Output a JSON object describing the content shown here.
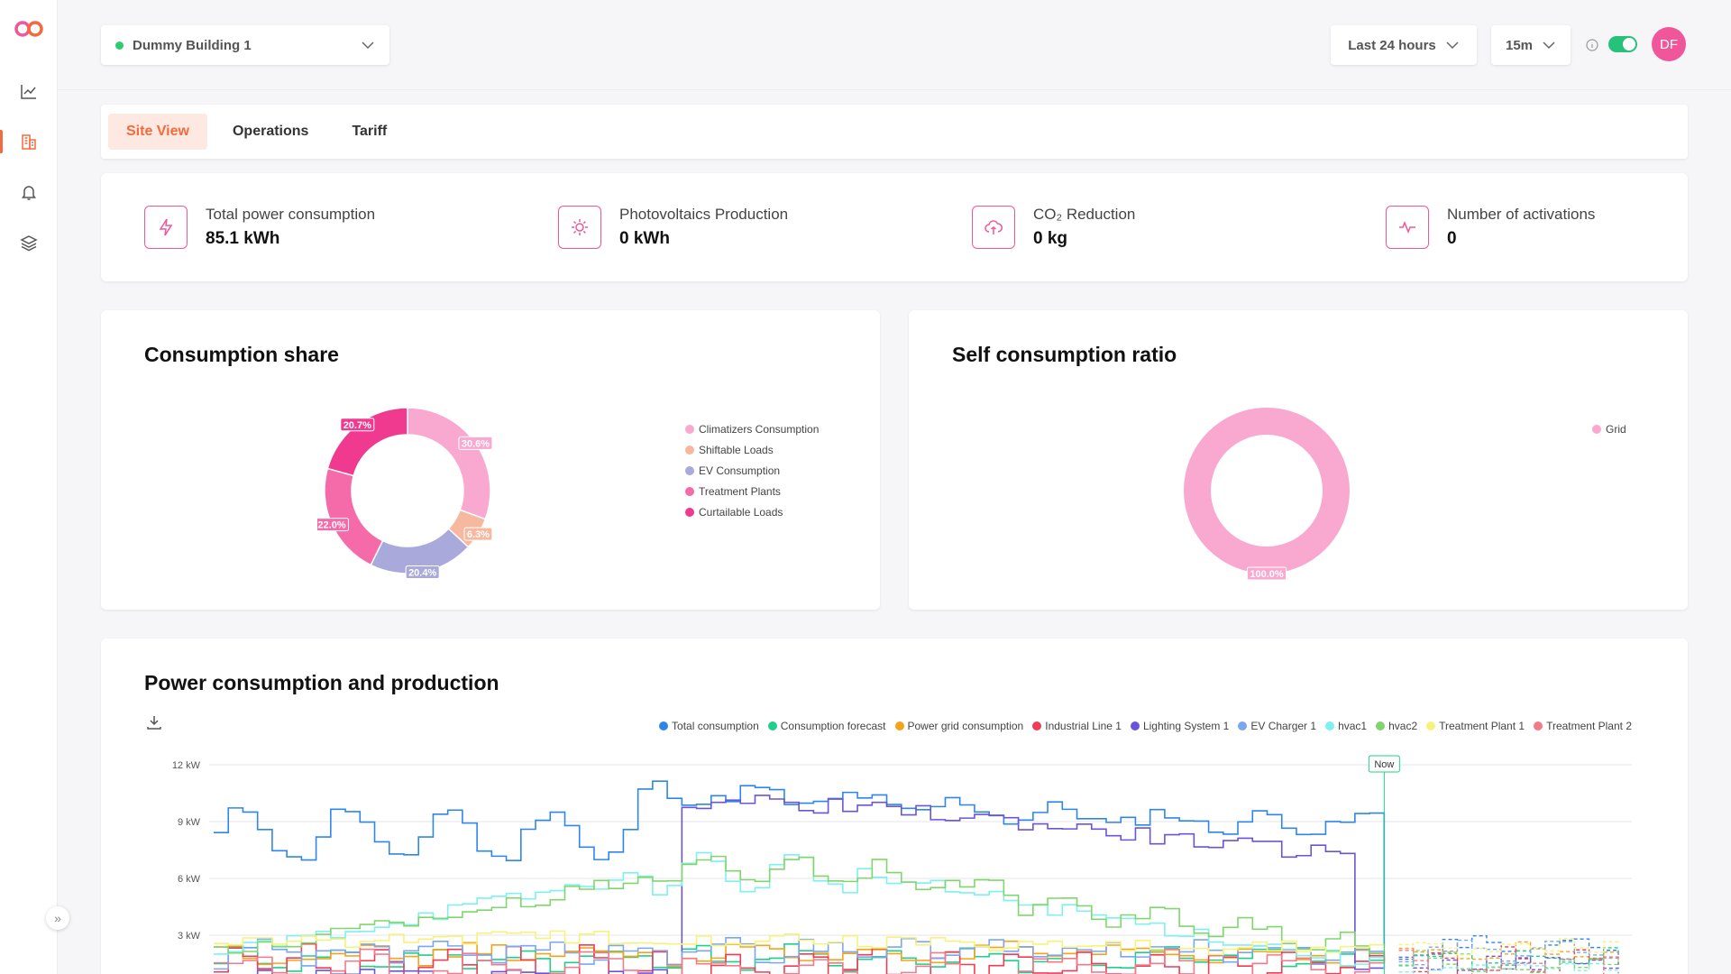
{
  "header": {
    "building": "Dummy Building 1",
    "range": "Last 24 hours",
    "interval": "15m",
    "avatar_initials": "DF"
  },
  "sidebar": {
    "items": [
      {
        "icon": "line-chart-icon"
      },
      {
        "icon": "building-icon",
        "active": true
      },
      {
        "icon": "bell-icon"
      },
      {
        "icon": "layers-icon"
      }
    ]
  },
  "tabs": [
    {
      "label": "Site View",
      "active": true
    },
    {
      "label": "Operations"
    },
    {
      "label": "Tariff"
    }
  ],
  "kpis": [
    {
      "label": "Total power consumption",
      "value": "85.1 kWh",
      "icon": "bolt-icon"
    },
    {
      "label": "Photovoltaics Production",
      "value": "0 kWh",
      "icon": "sun-icon"
    },
    {
      "label": "CO₂ Reduction",
      "value": "0 kg",
      "icon": "cloud-leaf-icon"
    },
    {
      "label": "Number of activations",
      "value": "0",
      "icon": "activity-icon"
    }
  ],
  "consumption_share": {
    "title": "Consumption share",
    "chart_data": {
      "type": "pie",
      "series": [
        {
          "name": "Climatizers Consumption",
          "value": 30.6,
          "label": "30.6%",
          "color": "#f9a8d0"
        },
        {
          "name": "Shiftable Loads",
          "value": 6.3,
          "label": "6.3%",
          "color": "#f7b8a0"
        },
        {
          "name": "EV Consumption",
          "value": 20.4,
          "label": "20.4%",
          "color": "#a9a9db"
        },
        {
          "name": "Treatment Plants",
          "value": 22.0,
          "label": "22.0%",
          "color": "#f56aa8"
        },
        {
          "name": "Curtailable Loads",
          "value": 20.7,
          "label": "20.7%",
          "color": "#ef3a8f"
        }
      ]
    }
  },
  "self_consumption": {
    "title": "Self consumption ratio",
    "chart_data": {
      "type": "pie",
      "series": [
        {
          "name": "Grid",
          "value": 100.0,
          "label": "100.0%",
          "color": "#f9a8d0"
        }
      ]
    }
  },
  "power_chart": {
    "title": "Power consumption and production",
    "now_label": "Now",
    "chart_data": {
      "type": "line",
      "yticks": [
        "12 kW",
        "9 kW",
        "6 kW",
        "3 kW"
      ],
      "ylim": [
        0,
        12
      ],
      "series": [
        {
          "name": "Total consumption",
          "color": "#2f86ea"
        },
        {
          "name": "Consumption forecast",
          "color": "#1fcf8a"
        },
        {
          "name": "Power grid consumption",
          "color": "#f7a21b"
        },
        {
          "name": "Industrial Line 1",
          "color": "#f03c55"
        },
        {
          "name": "Lighting System 1",
          "color": "#6a55d8"
        },
        {
          "name": "EV Charger 1",
          "color": "#7aa7ef"
        },
        {
          "name": "hvac1",
          "color": "#7ef0ef"
        },
        {
          "name": "hvac2",
          "color": "#80d66c"
        },
        {
          "name": "Treatment Plant 1",
          "color": "#f7f27a"
        },
        {
          "name": "Treatment Plant 2",
          "color": "#f47a8a"
        }
      ]
    }
  }
}
